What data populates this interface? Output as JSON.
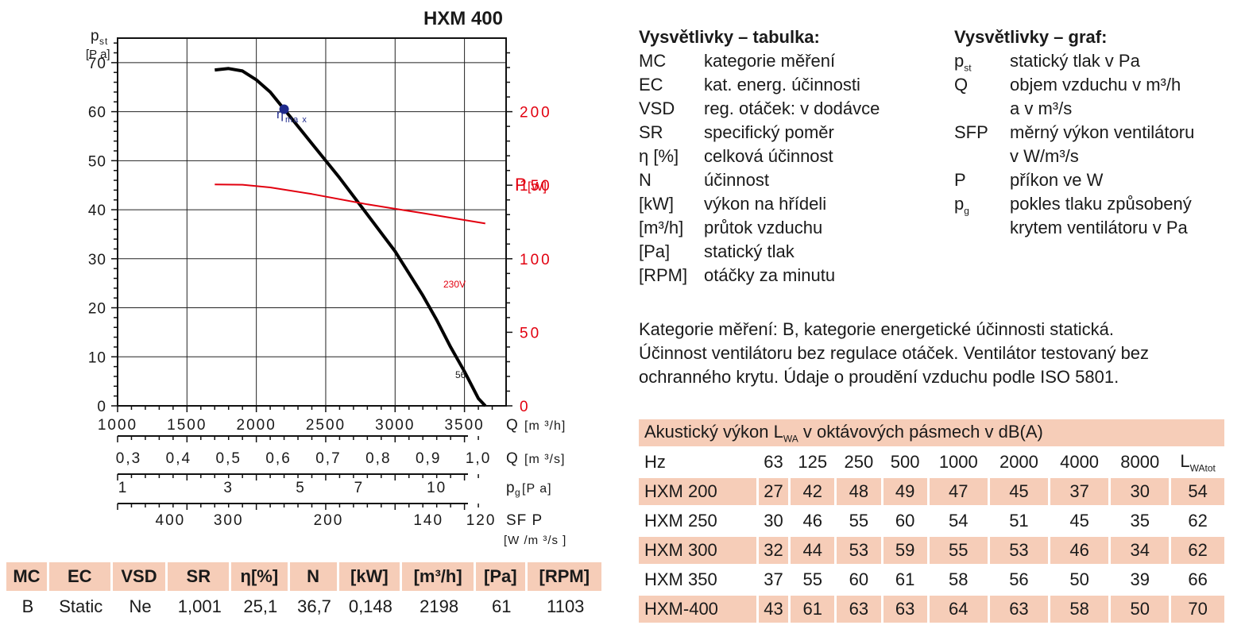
{
  "chart_data": {
    "type": "line",
    "title": "HXM 400",
    "ylabel": "pst [Pa]",
    "ylabel_main": "p",
    "ylabel_sub": "st",
    "ylabel_unit": "[P a]",
    "y2label": "P",
    "y2label_unit": "[W]",
    "xlabel": "Q",
    "xlabel_unit": "[m ³/h]",
    "xlim": [
      1000,
      3800
    ],
    "ylim": [
      0,
      75
    ],
    "y2lim": [
      0,
      250
    ],
    "xticks": [
      1000,
      1500,
      2000,
      2500,
      3000,
      3500
    ],
    "xtick_labels": [
      "1000",
      "1500",
      "2000",
      "2500",
      "3000",
      "3500"
    ],
    "yticks": [
      0,
      10,
      20,
      30,
      40,
      50,
      60,
      70
    ],
    "ytick_labels": [
      "0",
      "10",
      "20",
      "30",
      "40",
      "50",
      "60",
      "70"
    ],
    "y2ticks": [
      0,
      50,
      100,
      150,
      200
    ],
    "y2tick_labels": [
      "0",
      "50",
      "100",
      "150",
      "200"
    ],
    "grid": true,
    "series": [
      {
        "name": "56",
        "axis": "left",
        "color": "#000000",
        "x": [
          1700,
          1800,
          1900,
          2000,
          2100,
          2200,
          2400,
          2600,
          2800,
          3000,
          3100,
          3200,
          3300,
          3400,
          3500,
          3600,
          3650
        ],
        "y": [
          68.5,
          68.8,
          68.3,
          66.5,
          64,
          60.5,
          53.5,
          46.5,
          39,
          31.5,
          27,
          22.5,
          17.5,
          12,
          7,
          1.5,
          0
        ]
      },
      {
        "name": "230V",
        "axis": "right",
        "color": "#e2000f",
        "x": [
          1700,
          1900,
          2100,
          2400,
          2800,
          3200,
          3650
        ],
        "y": [
          150.5,
          150.3,
          148.5,
          144,
          137,
          131,
          124
        ]
      }
    ],
    "marker": {
      "label_main": "η",
      "label_sub": "ma x",
      "x": 2200,
      "y": 60.5,
      "color": "#1f2a8c"
    },
    "aux_scales": [
      {
        "name": "Q",
        "unit": "[m ³/s]",
        "ticks": [
          {
            "label": "0,3",
            "x": 1080
          },
          {
            "label": "0,4",
            "x": 1440
          },
          {
            "label": "0,5",
            "x": 1800
          },
          {
            "label": "0,6",
            "x": 2160
          },
          {
            "label": "0,7",
            "x": 2520
          },
          {
            "label": "0,8",
            "x": 2880
          },
          {
            "label": "0,9",
            "x": 3240
          },
          {
            "label": "1,0",
            "x": 3600
          }
        ]
      },
      {
        "name": "p g",
        "name_main": "p",
        "name_sub": "g",
        "unit": "[P a]",
        "ticks": [
          {
            "label": "1",
            "x": 1040
          },
          {
            "label": "3",
            "x": 1800
          },
          {
            "label": "5",
            "x": 2320
          },
          {
            "label": "7",
            "x": 2740
          },
          {
            "label": "10",
            "x": 3300
          }
        ]
      },
      {
        "name": "SF P",
        "unit": "[W /m ³/s ]",
        "ticks": [
          {
            "label": "400",
            "x": 1380
          },
          {
            "label": "300",
            "x": 1800
          },
          {
            "label": "200",
            "x": 2520
          },
          {
            "label": "140",
            "x": 3240
          },
          {
            "label": "120",
            "x": 3620
          }
        ]
      }
    ]
  },
  "spec_table": {
    "headers": [
      "MC",
      "EC",
      "VSD",
      "SR",
      "η[%]",
      "N",
      "[kW]",
      "[m³/h]",
      "[Pa]",
      "[RPM]"
    ],
    "values": [
      "B",
      "Static",
      "Ne",
      "1,001",
      "25,1",
      "36,7",
      "0,148",
      "2198",
      "61",
      "1103"
    ]
  },
  "legend_table": {
    "title": "Vysvětlivky – tabulka:",
    "items": [
      {
        "key": "MC",
        "value": "kategorie měření"
      },
      {
        "key": "EC",
        "value": "kat. energ. účinnosti"
      },
      {
        "key": "VSD",
        "value": "reg. otáček: v dodávce"
      },
      {
        "key": "SR",
        "value": "specifický poměr"
      },
      {
        "key": "η [%]",
        "value": "celková účinnost"
      },
      {
        "key": "N",
        "value": "účinnost"
      },
      {
        "key": "[kW]",
        "value": "výkon na hřídeli"
      },
      {
        "key": "[m³/h]",
        "value": "průtok vzduchu"
      },
      {
        "key": "[Pa]",
        "value": "statický tlak"
      },
      {
        "key": "[RPM]",
        "value": "otáčky za minutu"
      }
    ]
  },
  "legend_graph": {
    "title": "Vysvětlivky – graf:",
    "items": [
      {
        "key": "p",
        "key_sub": "st",
        "lines": [
          "statický tlak v Pa"
        ]
      },
      {
        "key": "Q",
        "key_sub": "",
        "lines": [
          "objem vzduchu v m³/h",
          "a v m³/s"
        ]
      },
      {
        "key": "SFP",
        "key_sub": "",
        "lines": [
          "měrný výkon ventilátoru",
          "v W/m³/s"
        ]
      },
      {
        "key": "P",
        "key_sub": "",
        "lines": [
          "příkon ve W"
        ]
      },
      {
        "key": "p",
        "key_sub": "g",
        "lines": [
          "pokles tlaku způsobený",
          "krytem ventilátoru v Pa"
        ]
      }
    ]
  },
  "note": {
    "lines": [
      "Kategorie měření: B, kategorie energetické účinnosti statická.",
      "Účinnost ventilátoru bez regulace otáček. Ventilátor testovaný bez",
      "ochranného krytu. Údaje o proudění vzduchu podle ISO 5801."
    ]
  },
  "acoustic_table": {
    "title_main": "Akustický výkon L",
    "title_sub": "WA",
    "title_rest": " v oktávových pásmech v dB(A)",
    "header": [
      "Hz",
      "63",
      "125",
      "250",
      "500",
      "1000",
      "2000",
      "4000",
      "8000"
    ],
    "header_last_main": "L",
    "header_last_sub": "WAtot",
    "rows": [
      {
        "model": "HXM 200",
        "values": [
          "27",
          "42",
          "48",
          "49",
          "47",
          "45",
          "37",
          "30",
          "54"
        ]
      },
      {
        "model": "HXM 250",
        "values": [
          "30",
          "46",
          "55",
          "60",
          "54",
          "51",
          "45",
          "35",
          "62"
        ]
      },
      {
        "model": "HXM 300",
        "values": [
          "32",
          "44",
          "53",
          "59",
          "55",
          "53",
          "46",
          "34",
          "62"
        ]
      },
      {
        "model": "HXM 350",
        "values": [
          "37",
          "55",
          "60",
          "61",
          "58",
          "56",
          "50",
          "39",
          "66"
        ]
      },
      {
        "model": "HXM-400",
        "values": [
          "43",
          "61",
          "63",
          "63",
          "64",
          "63",
          "58",
          "50",
          "70"
        ]
      }
    ]
  },
  "colors": {
    "accent_fill": "#f6cdb8",
    "power_red": "#e2000f",
    "marker_blue": "#1f2a8c"
  }
}
